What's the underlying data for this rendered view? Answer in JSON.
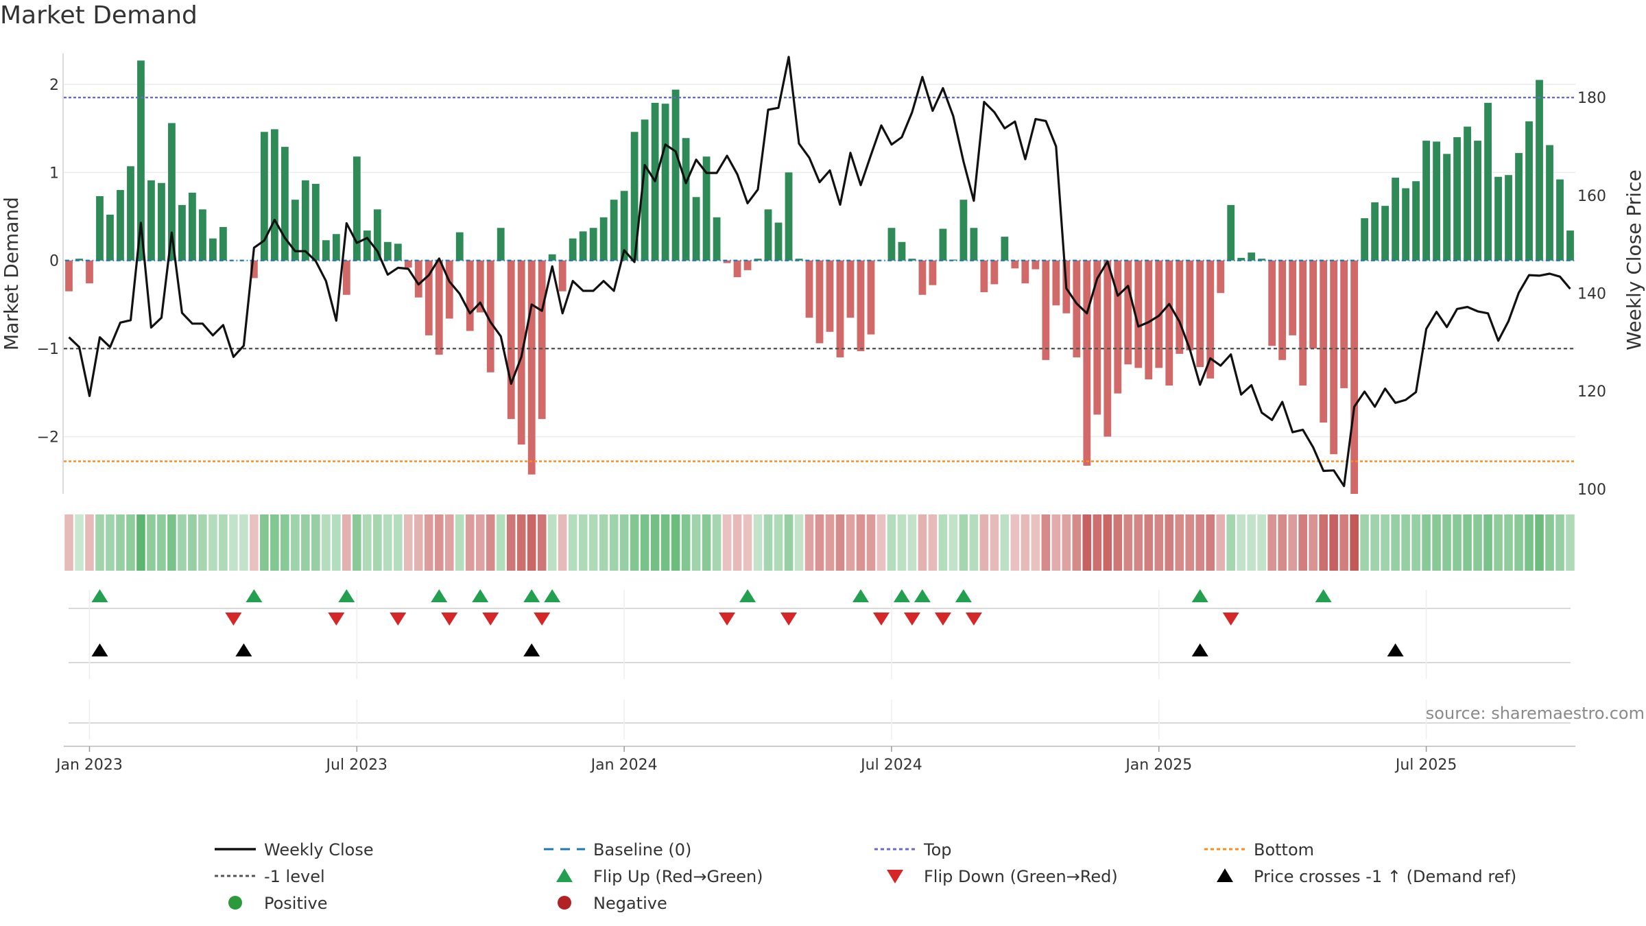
{
  "chart_data": {
    "type": "bar",
    "title": "Market Demand",
    "ylabel_left": "Market Demand",
    "ylabel_right": "Weekly Close Price",
    "left_ylim": [
      -2.65,
      2.35
    ],
    "right_ylim": [
      99,
      189
    ],
    "left_ticks": [
      2,
      1,
      0,
      -1,
      -2
    ],
    "left_tick_labels": [
      "2",
      "1",
      "0",
      "−1",
      "−2"
    ],
    "right_ticks": [
      180,
      160,
      140,
      120,
      100
    ],
    "right_tick_labels": [
      "180",
      "160",
      "140",
      "120",
      "100"
    ],
    "top_level": 1.85,
    "bottom_level": -2.28,
    "minus_one_level": -1,
    "x_tick_labels": [
      "Jan 2023",
      "Jul 2023",
      "Jan 2024",
      "Jul 2024",
      "Jan 2025",
      "Jul 2025"
    ],
    "x_tick_weeks": [
      2,
      28,
      54,
      80,
      106,
      132
    ],
    "source_text": "source: sharemaestro.com",
    "colors": {
      "positive": "#2e8b57",
      "negative": "#cd5c5c",
      "price": "#111111",
      "baseline": "#1f77b4",
      "top": "#6a6acd",
      "bottom": "#ff8c1a",
      "minus_one": "#555555",
      "flip_up": "#22a050",
      "flip_down": "#d62728",
      "cross": "#000000"
    },
    "demand": [
      -0.35,
      0.02,
      -0.26,
      0.73,
      0.52,
      0.8,
      1.07,
      2.27,
      0.91,
      0.88,
      1.56,
      0.63,
      0.77,
      0.58,
      0.25,
      0.38,
      0,
      0,
      -0.2,
      1.46,
      1.49,
      1.29,
      0.69,
      0.91,
      0.87,
      0.23,
      0.3,
      -0.39,
      1.18,
      0.34,
      0.58,
      0.21,
      0.19,
      -0.08,
      -0.42,
      -0.85,
      -1.07,
      -0.66,
      0.32,
      -0.8,
      -0.59,
      -1.27,
      0.37,
      -1.8,
      -2.09,
      -2.43,
      -1.8,
      0.07,
      -0.35,
      0.25,
      0.33,
      0.37,
      0.49,
      0.69,
      0.79,
      1.46,
      1.6,
      1.79,
      1.78,
      1.94,
      1.39,
      0.72,
      1.18,
      0.49,
      -0.03,
      -0.19,
      -0.11,
      0.02,
      0.58,
      0.43,
      1.0,
      0.02,
      -0.65,
      -0.94,
      -0.81,
      -1.1,
      -0.65,
      -1.03,
      -0.84,
      0,
      0.37,
      0.21,
      0.02,
      -0.39,
      -0.28,
      0.36,
      0.01,
      0.69,
      0.37,
      -0.36,
      -0.27,
      0.27,
      -0.09,
      -0.26,
      -0.1,
      -1.13,
      -0.51,
      -0.6,
      -1.1,
      -2.33,
      -1.75,
      -2.0,
      -1.51,
      -1.18,
      -1.22,
      -1.35,
      -1.22,
      -1.42,
      -1.06,
      -1.02,
      -1.21,
      -1.34,
      -0.37,
      0.63,
      0.03,
      0.09,
      0.02,
      -0.97,
      -1.13,
      -0.85,
      -1.42,
      -1.0,
      -1.84,
      -2.2,
      -1.45,
      -2.65,
      0.48,
      0.66,
      0.62,
      0.94,
      0.82,
      0.9,
      1.36,
      1.35,
      1.21,
      1.4,
      1.52,
      1.36,
      1.79,
      0.95,
      0.97,
      1.22,
      1.58,
      2.05,
      1.31,
      0.92,
      0.34
    ],
    "price": [
      131,
      129,
      119,
      131,
      129,
      134,
      134.5,
      154.4,
      133,
      135,
      152.4,
      136,
      133.8,
      133.8,
      131.4,
      133.5,
      127,
      129.3,
      149.3,
      150.8,
      155,
      151.3,
      148.6,
      148.6,
      146.6,
      142.5,
      134.4,
      154.3,
      150.3,
      151.3,
      148.6,
      143.8,
      145.2,
      145,
      141.8,
      143.7,
      147.1,
      142.4,
      139.9,
      135.9,
      138.1,
      134.1,
      131.2,
      121.5,
      127,
      137.7,
      136.4,
      145.5,
      135.9,
      142.5,
      140.5,
      140.5,
      142.5,
      140.5,
      148.8,
      146.4,
      166.2,
      162.9,
      170.4,
      169,
      162.5,
      167.3,
      164.6,
      164.6,
      168.1,
      164.3,
      158.4,
      161.2,
      177.5,
      177.9,
      188.3,
      170.6,
      167.7,
      162.7,
      165.1,
      158.1,
      168.7,
      162.1,
      168.3,
      174.3,
      170.4,
      171.9,
      177,
      184.2,
      177.3,
      181.9,
      176.2,
      166.9,
      158.9,
      179.1,
      177,
      173.7,
      175.1,
      167.4,
      175.6,
      175.2,
      170,
      141,
      137.9,
      135.9,
      143,
      146.5,
      139.5,
      141.5,
      133.2,
      134.1,
      135.4,
      137.8,
      134.2,
      128.6,
      121.3,
      126.7,
      125.2,
      127.5,
      119.3,
      121.2,
      115.6,
      114.1,
      117.8,
      111.6,
      112.1,
      108.5,
      103.7,
      103.8,
      100.6,
      116.8,
      119.9,
      116.8,
      120.5,
      117.6,
      118.2,
      119.8,
      132.7,
      136.2,
      133.1,
      136.8,
      137.2,
      136.3,
      135.9,
      130.3,
      134.3,
      140.1,
      143.7,
      143.6,
      144,
      143.4,
      140.9
    ],
    "heat_strength": [
      0.25,
      0.15,
      0.25,
      0.45,
      0.45,
      0.5,
      0.55,
      0.9,
      0.55,
      0.55,
      0.7,
      0.45,
      0.5,
      0.4,
      0.3,
      0.35,
      0.2,
      0.2,
      0.2,
      0.65,
      0.65,
      0.6,
      0.45,
      0.5,
      0.5,
      0.3,
      0.3,
      0.3,
      0.6,
      0.35,
      0.4,
      0.3,
      0.3,
      0.25,
      0.3,
      0.45,
      0.5,
      0.4,
      0.3,
      0.45,
      0.4,
      0.55,
      0.3,
      0.7,
      0.75,
      0.8,
      0.7,
      0.25,
      0.25,
      0.3,
      0.35,
      0.35,
      0.4,
      0.45,
      0.5,
      0.65,
      0.7,
      0.75,
      0.75,
      0.8,
      0.65,
      0.45,
      0.6,
      0.4,
      0.2,
      0.25,
      0.2,
      0.2,
      0.4,
      0.35,
      0.5,
      0.2,
      0.4,
      0.5,
      0.45,
      0.55,
      0.4,
      0.5,
      0.45,
      0.2,
      0.3,
      0.25,
      0.2,
      0.3,
      0.25,
      0.3,
      0.2,
      0.4,
      0.3,
      0.3,
      0.25,
      0.25,
      0.2,
      0.25,
      0.2,
      0.55,
      0.35,
      0.4,
      0.55,
      0.85,
      0.75,
      0.8,
      0.7,
      0.6,
      0.6,
      0.65,
      0.6,
      0.65,
      0.55,
      0.55,
      0.6,
      0.65,
      0.3,
      0.4,
      0.2,
      0.2,
      0.2,
      0.5,
      0.55,
      0.45,
      0.65,
      0.5,
      0.75,
      0.85,
      0.65,
      0.9,
      0.45,
      0.45,
      0.45,
      0.5,
      0.5,
      0.5,
      0.6,
      0.6,
      0.6,
      0.6,
      0.65,
      0.6,
      0.7,
      0.55,
      0.55,
      0.6,
      0.7,
      0.8,
      0.6,
      0.5,
      0.35
    ],
    "flip_up_weeks": [
      3,
      18,
      27,
      36,
      40,
      45,
      47,
      66,
      77,
      81,
      83,
      87,
      110,
      122
    ],
    "flip_down_weeks": [
      16,
      26,
      32,
      37,
      41,
      46,
      64,
      70,
      79,
      82,
      85,
      88,
      113
    ],
    "price_cross_weeks": [
      3,
      17,
      45,
      110,
      129
    ]
  },
  "legend": {
    "items": [
      {
        "label": "Weekly Close",
        "symbol": "line-solid",
        "color": "#111111"
      },
      {
        "label": "Baseline (0)",
        "symbol": "line-dash",
        "color": "#1f77b4"
      },
      {
        "label": "Top",
        "symbol": "line-dot",
        "color": "#6a6acd"
      },
      {
        "label": "Bottom",
        "symbol": "line-dot",
        "color": "#ff8c1a"
      },
      {
        "label": "-1 level",
        "symbol": "line-dot",
        "color": "#555555"
      },
      {
        "label": "Flip Up (Red→Green)",
        "symbol": "triangle-up",
        "color": "#22a050"
      },
      {
        "label": "Flip Down (Green→Red)",
        "symbol": "triangle-down",
        "color": "#d62728"
      },
      {
        "label": "Price crosses -1 ↑ (Demand ref)",
        "symbol": "triangle-up",
        "color": "#000000"
      },
      {
        "label": "Positive",
        "symbol": "dot",
        "color": "#2a9a3a"
      },
      {
        "label": "Negative",
        "symbol": "dot",
        "color": "#b22222"
      }
    ]
  }
}
